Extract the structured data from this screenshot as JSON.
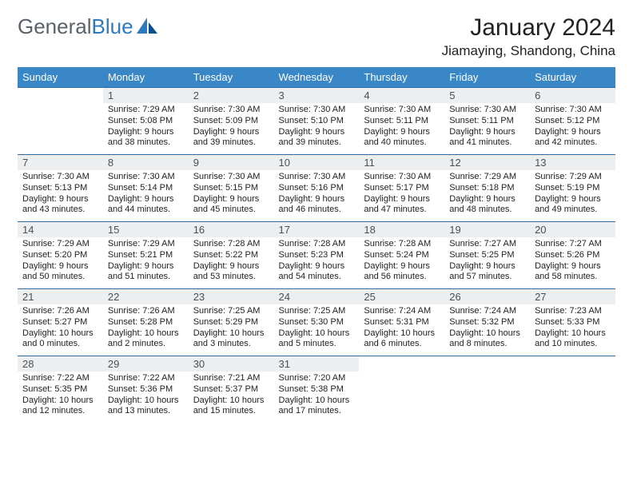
{
  "logo": {
    "text_general": "General",
    "text_blue": "Blue"
  },
  "title": "January 2024",
  "location": "Jiamaying, Shandong, China",
  "colors": {
    "header_bg": "#3a87c8",
    "header_text": "#ffffff",
    "daynum_bg": "#eceef0",
    "daynum_text": "#4a5056",
    "border": "#2f6aa0",
    "logo_gray": "#5b636a",
    "logo_blue": "#2f7abf",
    "body_text": "#222222",
    "page_bg": "#ffffff"
  },
  "typography": {
    "title_fontsize": 30,
    "location_fontsize": 17,
    "dayheader_fontsize": 13,
    "daynum_fontsize": 13,
    "content_fontsize": 11,
    "logo_fontsize": 26
  },
  "weekdays": [
    "Sunday",
    "Monday",
    "Tuesday",
    "Wednesday",
    "Thursday",
    "Friday",
    "Saturday"
  ],
  "weeks": [
    [
      null,
      {
        "n": "1",
        "sr": "Sunrise: 7:29 AM",
        "ss": "Sunset: 5:08 PM",
        "dl": "Daylight: 9 hours and 38 minutes."
      },
      {
        "n": "2",
        "sr": "Sunrise: 7:30 AM",
        "ss": "Sunset: 5:09 PM",
        "dl": "Daylight: 9 hours and 39 minutes."
      },
      {
        "n": "3",
        "sr": "Sunrise: 7:30 AM",
        "ss": "Sunset: 5:10 PM",
        "dl": "Daylight: 9 hours and 39 minutes."
      },
      {
        "n": "4",
        "sr": "Sunrise: 7:30 AM",
        "ss": "Sunset: 5:11 PM",
        "dl": "Daylight: 9 hours and 40 minutes."
      },
      {
        "n": "5",
        "sr": "Sunrise: 7:30 AM",
        "ss": "Sunset: 5:11 PM",
        "dl": "Daylight: 9 hours and 41 minutes."
      },
      {
        "n": "6",
        "sr": "Sunrise: 7:30 AM",
        "ss": "Sunset: 5:12 PM",
        "dl": "Daylight: 9 hours and 42 minutes."
      }
    ],
    [
      {
        "n": "7",
        "sr": "Sunrise: 7:30 AM",
        "ss": "Sunset: 5:13 PM",
        "dl": "Daylight: 9 hours and 43 minutes."
      },
      {
        "n": "8",
        "sr": "Sunrise: 7:30 AM",
        "ss": "Sunset: 5:14 PM",
        "dl": "Daylight: 9 hours and 44 minutes."
      },
      {
        "n": "9",
        "sr": "Sunrise: 7:30 AM",
        "ss": "Sunset: 5:15 PM",
        "dl": "Daylight: 9 hours and 45 minutes."
      },
      {
        "n": "10",
        "sr": "Sunrise: 7:30 AM",
        "ss": "Sunset: 5:16 PM",
        "dl": "Daylight: 9 hours and 46 minutes."
      },
      {
        "n": "11",
        "sr": "Sunrise: 7:30 AM",
        "ss": "Sunset: 5:17 PM",
        "dl": "Daylight: 9 hours and 47 minutes."
      },
      {
        "n": "12",
        "sr": "Sunrise: 7:29 AM",
        "ss": "Sunset: 5:18 PM",
        "dl": "Daylight: 9 hours and 48 minutes."
      },
      {
        "n": "13",
        "sr": "Sunrise: 7:29 AM",
        "ss": "Sunset: 5:19 PM",
        "dl": "Daylight: 9 hours and 49 minutes."
      }
    ],
    [
      {
        "n": "14",
        "sr": "Sunrise: 7:29 AM",
        "ss": "Sunset: 5:20 PM",
        "dl": "Daylight: 9 hours and 50 minutes."
      },
      {
        "n": "15",
        "sr": "Sunrise: 7:29 AM",
        "ss": "Sunset: 5:21 PM",
        "dl": "Daylight: 9 hours and 51 minutes."
      },
      {
        "n": "16",
        "sr": "Sunrise: 7:28 AM",
        "ss": "Sunset: 5:22 PM",
        "dl": "Daylight: 9 hours and 53 minutes."
      },
      {
        "n": "17",
        "sr": "Sunrise: 7:28 AM",
        "ss": "Sunset: 5:23 PM",
        "dl": "Daylight: 9 hours and 54 minutes."
      },
      {
        "n": "18",
        "sr": "Sunrise: 7:28 AM",
        "ss": "Sunset: 5:24 PM",
        "dl": "Daylight: 9 hours and 56 minutes."
      },
      {
        "n": "19",
        "sr": "Sunrise: 7:27 AM",
        "ss": "Sunset: 5:25 PM",
        "dl": "Daylight: 9 hours and 57 minutes."
      },
      {
        "n": "20",
        "sr": "Sunrise: 7:27 AM",
        "ss": "Sunset: 5:26 PM",
        "dl": "Daylight: 9 hours and 58 minutes."
      }
    ],
    [
      {
        "n": "21",
        "sr": "Sunrise: 7:26 AM",
        "ss": "Sunset: 5:27 PM",
        "dl": "Daylight: 10 hours and 0 minutes."
      },
      {
        "n": "22",
        "sr": "Sunrise: 7:26 AM",
        "ss": "Sunset: 5:28 PM",
        "dl": "Daylight: 10 hours and 2 minutes."
      },
      {
        "n": "23",
        "sr": "Sunrise: 7:25 AM",
        "ss": "Sunset: 5:29 PM",
        "dl": "Daylight: 10 hours and 3 minutes."
      },
      {
        "n": "24",
        "sr": "Sunrise: 7:25 AM",
        "ss": "Sunset: 5:30 PM",
        "dl": "Daylight: 10 hours and 5 minutes."
      },
      {
        "n": "25",
        "sr": "Sunrise: 7:24 AM",
        "ss": "Sunset: 5:31 PM",
        "dl": "Daylight: 10 hours and 6 minutes."
      },
      {
        "n": "26",
        "sr": "Sunrise: 7:24 AM",
        "ss": "Sunset: 5:32 PM",
        "dl": "Daylight: 10 hours and 8 minutes."
      },
      {
        "n": "27",
        "sr": "Sunrise: 7:23 AM",
        "ss": "Sunset: 5:33 PM",
        "dl": "Daylight: 10 hours and 10 minutes."
      }
    ],
    [
      {
        "n": "28",
        "sr": "Sunrise: 7:22 AM",
        "ss": "Sunset: 5:35 PM",
        "dl": "Daylight: 10 hours and 12 minutes."
      },
      {
        "n": "29",
        "sr": "Sunrise: 7:22 AM",
        "ss": "Sunset: 5:36 PM",
        "dl": "Daylight: 10 hours and 13 minutes."
      },
      {
        "n": "30",
        "sr": "Sunrise: 7:21 AM",
        "ss": "Sunset: 5:37 PM",
        "dl": "Daylight: 10 hours and 15 minutes."
      },
      {
        "n": "31",
        "sr": "Sunrise: 7:20 AM",
        "ss": "Sunset: 5:38 PM",
        "dl": "Daylight: 10 hours and 17 minutes."
      },
      null,
      null,
      null
    ]
  ]
}
